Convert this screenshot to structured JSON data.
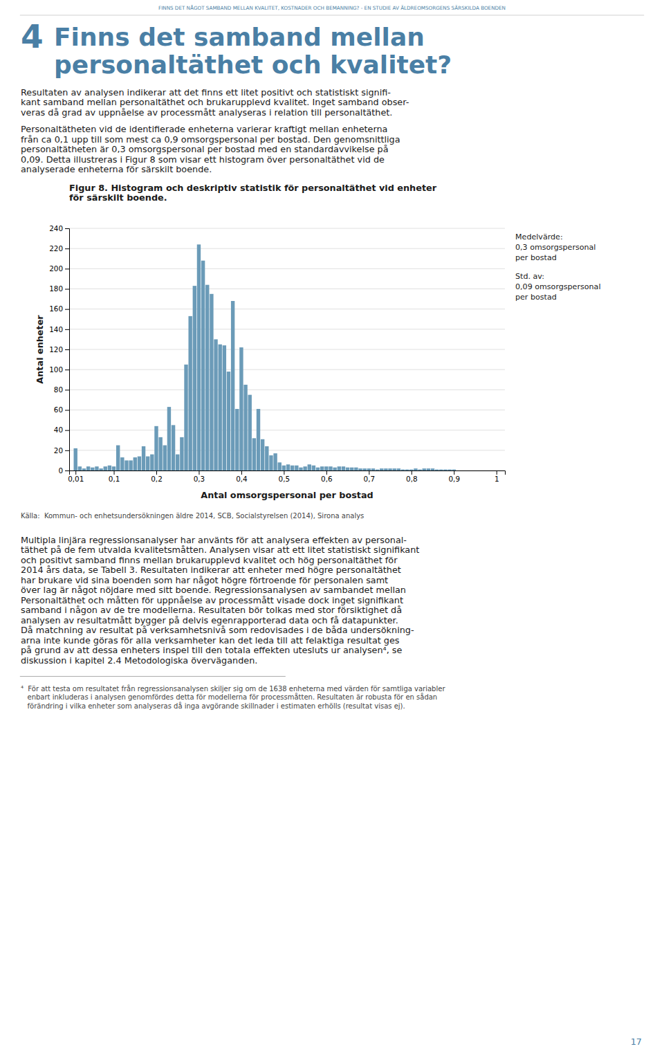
{
  "page": {
    "page_title": "FINNS DET NÅGOT SAMBAND MELLAN KVALITET, KOSTNADER OCH BEMANNING? - EN STUDIE AV ÄLDREOMSORGENS SÄRSKILDA BOENDEN",
    "section_number": "4",
    "section_title": [
      "Finns det samband mellan",
      "personaltäthet och kvalitet?"
    ],
    "paragraph1": [
      "Resultaten av analysen indikerar att det finns ett litet positivt och statistiskt signifi-",
      "kant samband mellan personaltäthet och brukarupplevd kvalitet. Inget samband obser-",
      "veras då grad av uppnåelse av processmått analyseras i relation till personaltäthet."
    ],
    "paragraph2": [
      "Personaltätheten vid de identifierade enheterna varierar kraftigt mellan enheterna",
      "från ca 0,1 upp till som mest ca 0,9 omsorgspersonal per bostad. Den genomsnittliga",
      "personaltätheten är 0,3 omsorgspersonal per bostad med en standardavvikelse på",
      "0,09. Detta illustreras i Figur 8 som visar ett histogram över personaltäthet vid de",
      "analyserade enheterna för särskilt boende."
    ],
    "source": "Källa:  Kommun- och enhetsundersökningen äldre 2014, SCB, Socialstyrelsen (2014), Sirona analys",
    "paragraph3": [
      "Multipla linjära regressionsanalyser har använts för att analysera effekten av personal-",
      "täthet på de fem utvalda kvalitetsmåtten. Analysen visar att ett litet statistiskt signifikant",
      "och positivt samband finns mellan brukarupplevd kvalitet och hög personaltäthet för",
      "2014 års data, se Tabell 3. Resultaten indikerar att enheter med högre personaltäthet",
      "har brukare vid sina boenden som har något högre förtroende för personalen samt",
      "över lag är något nöjdare med sitt boende. Regressionsanalysen av sambandet mellan",
      "Personaltäthet och måtten för uppnåelse av processmått visade dock inget signifikant",
      "samband i någon av de tre modellerna. Resultaten bör tolkas med stor försiktighet då",
      "analysen av resultatmått bygger på delvis egenrapporterad data och få datapunkter.",
      "Då matchning av resultat på verksamhetsnivå som redovisades i de båda undersökning-",
      "arna inte kunde göras för alla verksamheter kan det leda till att felaktiga resultat ges",
      "på grund av att dessa enheters inspel till den totala effekten utesluts ur analysen⁴, se",
      "diskussion i kapitel 2.4 Metodologiska överväganden."
    ],
    "footnote": [
      "⁴  För att testa om resultatet från regressionsanalysen skiljer sig om de 1638 enheterna med värden för samtliga variabler",
      "   enbart inkluderas i analysen genomfördes detta för modellerna för processmåtten. Resultaten är robusta för en sådan",
      "   förändring i vilka enheter som analyseras då inga avgörande skillnader i estimaten erhölls (resultat visas ej)."
    ],
    "page_number": "17"
  },
  "chart_data": {
    "type": "bar",
    "title": [
      "Figur 8. Histogram och deskriptiv statistik för personaltäthet vid enheter",
      "för särskilt boende."
    ],
    "xlabel": "Antal omsorgspersonal per bostad",
    "ylabel": "Antal enheter",
    "annotations": [
      "Medelvärde:",
      "0,3 omsorgspersonal",
      "per bostad",
      "Std. av:",
      "0,09 omsorgspersonal",
      "per bostad"
    ],
    "x": [
      0.01,
      0.02,
      0.03,
      0.04,
      0.05,
      0.06,
      0.07,
      0.08,
      0.09,
      0.1,
      0.11,
      0.12,
      0.13,
      0.14,
      0.15,
      0.16,
      0.17,
      0.18,
      0.19,
      0.2,
      0.21,
      0.22,
      0.23,
      0.24,
      0.25,
      0.26,
      0.27,
      0.28,
      0.29,
      0.3,
      0.31,
      0.32,
      0.33,
      0.34,
      0.35,
      0.36,
      0.37,
      0.38,
      0.39,
      0.4,
      0.41,
      0.42,
      0.43,
      0.44,
      0.45,
      0.46,
      0.47,
      0.48,
      0.49,
      0.5,
      0.51,
      0.52,
      0.53,
      0.54,
      0.55,
      0.56,
      0.57,
      0.58,
      0.59,
      0.6,
      0.61,
      0.62,
      0.63,
      0.64,
      0.65,
      0.66,
      0.67,
      0.68,
      0.69,
      0.7,
      0.71,
      0.72,
      0.73,
      0.74,
      0.75,
      0.76,
      0.77,
      0.78,
      0.79,
      0.8,
      0.81,
      0.82,
      0.83,
      0.84,
      0.85,
      0.86,
      0.87,
      0.88,
      0.89,
      0.9
    ],
    "values": [
      22,
      4,
      2,
      4,
      3,
      4,
      2,
      4,
      5,
      4,
      25,
      13,
      10,
      10,
      13,
      14,
      24,
      14,
      16,
      44,
      33,
      25,
      63,
      45,
      16,
      33,
      105,
      153,
      183,
      224,
      208,
      184,
      175,
      130,
      125,
      124,
      98,
      168,
      61,
      122,
      85,
      75,
      32,
      61,
      31,
      24,
      15,
      17,
      8,
      5,
      6,
      5,
      5,
      3,
      4,
      6,
      5,
      3,
      4,
      4,
      4,
      3,
      4,
      4,
      3,
      3,
      3,
      2,
      2,
      2,
      2,
      1,
      2,
      2,
      2,
      2,
      2,
      1,
      1,
      1,
      2,
      1,
      2,
      2,
      2,
      1,
      1,
      1,
      1,
      1
    ],
    "color": "#6b9bb8",
    "xlim": [
      -0.005,
      1.02
    ],
    "ylim": [
      0,
      240
    ],
    "yticks": [
      0,
      20,
      40,
      60,
      80,
      100,
      120,
      140,
      160,
      180,
      200,
      220,
      240
    ],
    "xticks": [
      {
        "value": 0.01,
        "label": "0,01"
      },
      {
        "value": 0.1,
        "label": "0,1"
      },
      {
        "value": 0.2,
        "label": "0,2"
      },
      {
        "value": 0.3,
        "label": "0,3"
      },
      {
        "value": 0.4,
        "label": "0,4"
      },
      {
        "value": 0.5,
        "label": "0,5"
      },
      {
        "value": 0.6,
        "label": "0,6"
      },
      {
        "value": 0.7,
        "label": "0,7"
      },
      {
        "value": 0.8,
        "label": "0,8"
      },
      {
        "value": 0.9,
        "label": "0,9"
      },
      1
    ],
    "grid": true
  }
}
